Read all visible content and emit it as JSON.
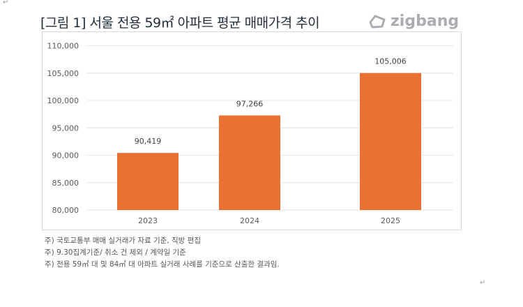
{
  "title": "[그림 1] 서울 전용 59㎡ 아파트 평균 매매가격 추이",
  "logo": {
    "text": "zigbang",
    "color": "#a9adb3"
  },
  "chart_data": {
    "type": "bar",
    "categories": [
      "2023",
      "2024",
      "2025"
    ],
    "values": [
      90419,
      97266,
      105006
    ],
    "data_labels": [
      "90,419",
      "97,266",
      "105,006"
    ],
    "ylim": [
      80000,
      110000
    ],
    "yticks": [
      80000,
      85000,
      90000,
      95000,
      100000,
      105000,
      110000
    ],
    "ytick_labels": [
      "80,000",
      "85,000",
      "90,000",
      "95,000",
      "100,000",
      "105,000",
      "110,000"
    ],
    "grid": true,
    "bar_color": "#e97132",
    "xlabel": "",
    "ylabel": ""
  },
  "notes": [
    "주) 국토교통부 매매 실거래가 자료 기준, 직방 편집",
    "주) 9.30집계기준/ 취소 건 제외 / 계약일 기준",
    "주) 전용 59㎡ 대 및 84㎡ 대 아파트 실거래 사례를 기준으로 산출한 결과임."
  ],
  "paragraph_mark": "↵"
}
